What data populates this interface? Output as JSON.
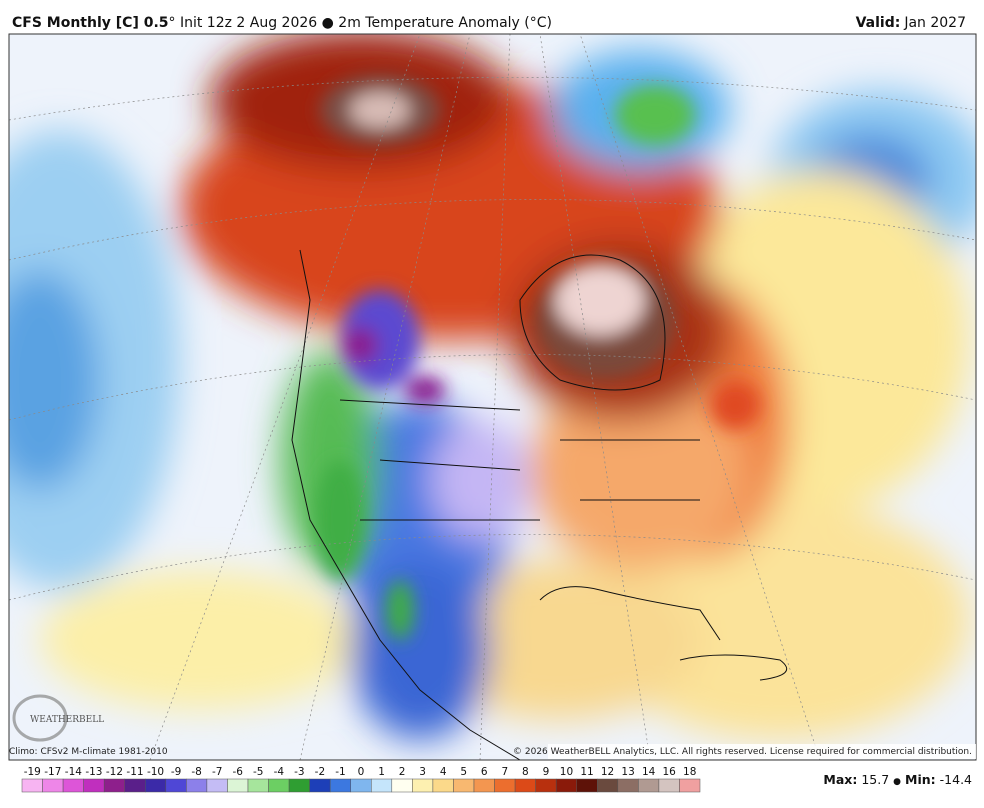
{
  "header": {
    "title_bold": "CFS Monthly [C] 0.5",
    "title_rest": "° Init 12z 2 Aug 2026 ● 2m Temperature Anomaly (°C)",
    "valid_label": "Valid:",
    "valid_value": "Jan 2027"
  },
  "footer": {
    "climo": "Climo: CFSv2 M-climate 1981-2010",
    "copyright": "© 2026 WeatherBELL Analytics, LLC. All rights reserved. License required for commercial distribution.",
    "logo": "WEATHERBELL",
    "max_label": "Max:",
    "max_value": 15.7,
    "separator": "●",
    "min_label": "Min:",
    "min_value": -14.4
  },
  "colorbar": {
    "labels": [
      -19,
      -17,
      -14,
      -13,
      -12,
      -11,
      -10,
      -9,
      -8,
      -7,
      -6,
      -5,
      -4,
      -3,
      -2,
      -1,
      0,
      1,
      2,
      3,
      4,
      5,
      6,
      7,
      8,
      9,
      10,
      11,
      12,
      13,
      14,
      16,
      18
    ],
    "colors": [
      "#f7b4f2",
      "#ee86e8",
      "#dd55d8",
      "#c02fbe",
      "#8e1f8c",
      "#5a1f8a",
      "#3b2aa8",
      "#4f47d6",
      "#8c80ea",
      "#c4bcf5",
      "#dcf5d6",
      "#a6e59c",
      "#6ccf63",
      "#2f9e32",
      "#1d3fb8",
      "#3c78e0",
      "#7fb6ee",
      "#c5e5fb",
      "#fffff0",
      "#fdf0b0",
      "#fbd98a",
      "#f8b870",
      "#f39650",
      "#ec6e2e",
      "#dc4a18",
      "#b8300e",
      "#8a1a0a",
      "#5e1208",
      "#6a4a3e",
      "#8c6e64",
      "#b09a92",
      "#d4c4c0",
      "#f0a0a0"
    ]
  }
}
